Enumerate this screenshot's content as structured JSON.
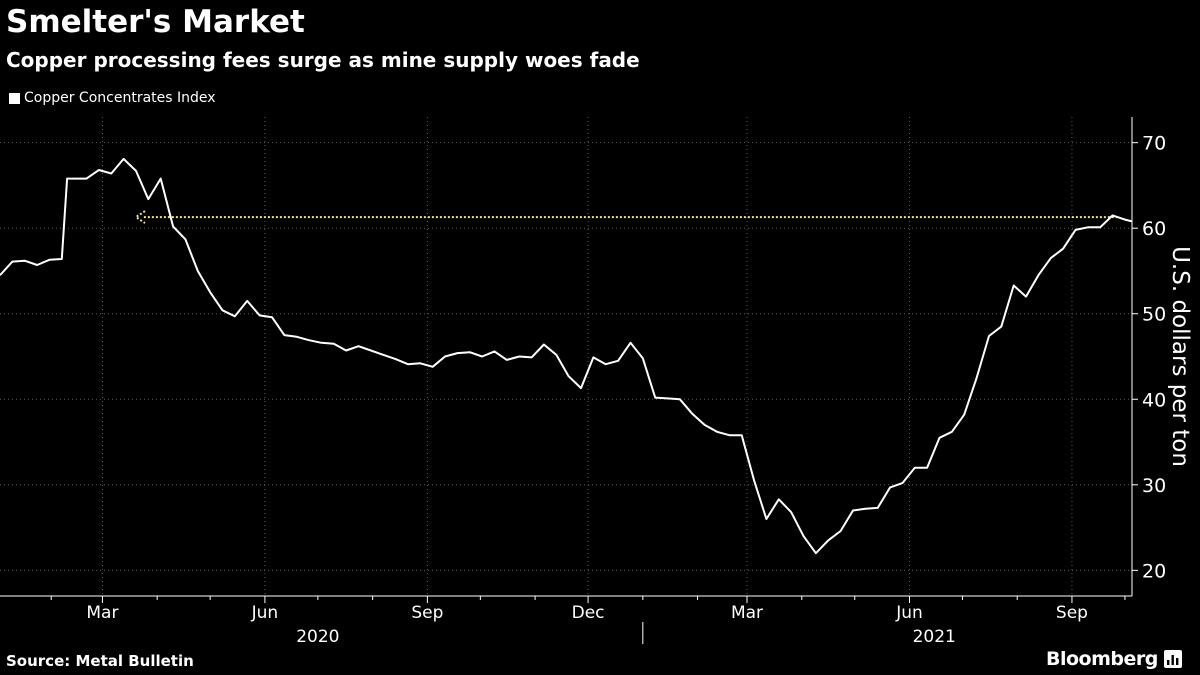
{
  "header": {
    "title": "Smelter's Market",
    "subtitle": "Copper processing fees surge as mine supply woes fade"
  },
  "legend": {
    "label": "Copper Concentrates Index"
  },
  "footer": {
    "source": "Source: Metal Bulletin",
    "brand": "Bloomberg"
  },
  "colors": {
    "background": "#000000",
    "line": "#ffffff",
    "grid": "#5a5a5a",
    "annotation": "#f5e08a"
  },
  "chart_data": {
    "type": "line",
    "title": "Smelter's Market",
    "subtitle": "Copper processing fees surge as mine supply woes fade",
    "ylabel": "U.S. dollars per ton",
    "xlabel": "",
    "ylim": [
      17,
      73
    ],
    "yticks": [
      20,
      30,
      40,
      50,
      60,
      70
    ],
    "x_domain": [
      "2020-01-03",
      "2021-10-05"
    ],
    "x_month_ticks": [
      {
        "label": "Mar",
        "date": "2020-03-01"
      },
      {
        "label": "Jun",
        "date": "2020-06-01"
      },
      {
        "label": "Sep",
        "date": "2020-09-01"
      },
      {
        "label": "Dec",
        "date": "2020-12-01"
      },
      {
        "label": "Mar",
        "date": "2021-03-01"
      },
      {
        "label": "Jun",
        "date": "2021-06-01"
      },
      {
        "label": "Sep",
        "date": "2021-09-01"
      }
    ],
    "x_minor_ticks": [
      "2020-01-01",
      "2020-02-01",
      "2020-04-01",
      "2020-05-01",
      "2020-07-01",
      "2020-08-01",
      "2020-10-01",
      "2020-11-01",
      "2021-01-01",
      "2021-02-01",
      "2021-04-01",
      "2021-05-01",
      "2021-07-01",
      "2021-08-01",
      "2021-10-01"
    ],
    "x_year_labels": [
      {
        "label": "2020",
        "date": "2020-07-01"
      },
      {
        "label": "2021",
        "date": "2021-06-15"
      }
    ],
    "year_divider": "2021-01-01",
    "grid": true,
    "legend": [
      {
        "name": "Copper Concentrates Index",
        "position": "top-left"
      }
    ],
    "annotation": {
      "type": "arrow",
      "from_date": "2021-09-27",
      "to_date": "2020-03-20",
      "value": 61.3,
      "meaning": "current level matches early-2020 level"
    },
    "series": [
      {
        "name": "Copper Concentrates Index",
        "points": [
          [
            "2020-01-03",
            54.5
          ],
          [
            "2020-01-10",
            56.1
          ],
          [
            "2020-01-17",
            56.2
          ],
          [
            "2020-01-24",
            55.7
          ],
          [
            "2020-01-31",
            56.3
          ],
          [
            "2020-02-07",
            56.4
          ],
          [
            "2020-02-10",
            65.8
          ],
          [
            "2020-02-14",
            65.8
          ],
          [
            "2020-02-21",
            65.8
          ],
          [
            "2020-02-28",
            66.8
          ],
          [
            "2020-03-06",
            66.4
          ],
          [
            "2020-03-13",
            68.1
          ],
          [
            "2020-03-20",
            66.7
          ],
          [
            "2020-03-27",
            63.4
          ],
          [
            "2020-04-03",
            65.8
          ],
          [
            "2020-04-10",
            60.2
          ],
          [
            "2020-04-17",
            58.7
          ],
          [
            "2020-04-24",
            55.0
          ],
          [
            "2020-05-01",
            52.5
          ],
          [
            "2020-05-08",
            50.4
          ],
          [
            "2020-05-15",
            49.7
          ],
          [
            "2020-05-22",
            51.5
          ],
          [
            "2020-05-29",
            49.8
          ],
          [
            "2020-06-05",
            49.6
          ],
          [
            "2020-06-12",
            47.5
          ],
          [
            "2020-06-19",
            47.3
          ],
          [
            "2020-06-26",
            46.9
          ],
          [
            "2020-07-03",
            46.6
          ],
          [
            "2020-07-10",
            46.5
          ],
          [
            "2020-07-17",
            45.7
          ],
          [
            "2020-07-24",
            46.2
          ],
          [
            "2020-07-31",
            45.7
          ],
          [
            "2020-08-07",
            45.2
          ],
          [
            "2020-08-14",
            44.7
          ],
          [
            "2020-08-21",
            44.1
          ],
          [
            "2020-08-28",
            44.2
          ],
          [
            "2020-09-04",
            43.8
          ],
          [
            "2020-09-11",
            45.0
          ],
          [
            "2020-09-18",
            45.4
          ],
          [
            "2020-09-25",
            45.5
          ],
          [
            "2020-10-02",
            45.0
          ],
          [
            "2020-10-09",
            45.6
          ],
          [
            "2020-10-16",
            44.6
          ],
          [
            "2020-10-23",
            45.0
          ],
          [
            "2020-10-30",
            44.9
          ],
          [
            "2020-11-06",
            46.4
          ],
          [
            "2020-11-13",
            45.2
          ],
          [
            "2020-11-20",
            42.7
          ],
          [
            "2020-11-27",
            41.3
          ],
          [
            "2020-12-04",
            44.9
          ],
          [
            "2020-12-11",
            44.1
          ],
          [
            "2020-12-18",
            44.5
          ],
          [
            "2020-12-25",
            46.6
          ],
          [
            "2021-01-01",
            44.8
          ],
          [
            "2021-01-08",
            40.2
          ],
          [
            "2021-01-15",
            40.1
          ],
          [
            "2021-01-22",
            40.0
          ],
          [
            "2021-01-29",
            38.3
          ],
          [
            "2021-02-05",
            37.0
          ],
          [
            "2021-02-12",
            36.2
          ],
          [
            "2021-02-19",
            35.8
          ],
          [
            "2021-02-26",
            35.8
          ],
          [
            "2021-03-05",
            30.5
          ],
          [
            "2021-03-12",
            26.0
          ],
          [
            "2021-03-19",
            28.3
          ],
          [
            "2021-03-26",
            26.8
          ],
          [
            "2021-04-02",
            24.0
          ],
          [
            "2021-04-09",
            22.0
          ],
          [
            "2021-04-16",
            23.5
          ],
          [
            "2021-04-23",
            24.6
          ],
          [
            "2021-04-30",
            27.0
          ],
          [
            "2021-05-07",
            27.2
          ],
          [
            "2021-05-14",
            27.3
          ],
          [
            "2021-05-21",
            29.7
          ],
          [
            "2021-05-28",
            30.2
          ],
          [
            "2021-06-04",
            32.0
          ],
          [
            "2021-06-11",
            32.0
          ],
          [
            "2021-06-18",
            35.5
          ],
          [
            "2021-06-25",
            36.2
          ],
          [
            "2021-07-02",
            38.2
          ],
          [
            "2021-07-09",
            42.5
          ],
          [
            "2021-07-16",
            47.4
          ],
          [
            "2021-07-23",
            48.5
          ],
          [
            "2021-07-30",
            53.3
          ],
          [
            "2021-08-06",
            52.0
          ],
          [
            "2021-08-13",
            54.5
          ],
          [
            "2021-08-20",
            56.5
          ],
          [
            "2021-08-27",
            57.6
          ],
          [
            "2021-09-03",
            59.8
          ],
          [
            "2021-09-10",
            60.1
          ],
          [
            "2021-09-17",
            60.1
          ],
          [
            "2021-09-24",
            61.5
          ],
          [
            "2021-10-01",
            61.0
          ],
          [
            "2021-10-05",
            60.8
          ]
        ]
      }
    ]
  }
}
